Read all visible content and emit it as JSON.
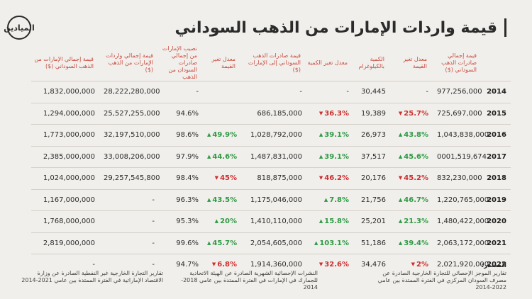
{
  "logo_text": "الميادين",
  "title": "قيمة واردات الإمارات من الذهب السوداني",
  "headers": {
    "uae_total_imports": "قيمة إجمالي الإمارات من الذهب السوداني ($)",
    "uae_total_gold_imports": "قيمة إجمالي واردات الإمارات من الذهب ($)",
    "sudan_share": "نصيب الإمارات من إجمالي صادرات السودان من الذهب",
    "value_change_uae": "معدل تغير القيمة",
    "uae_gold_exports_value": "قيمة صادرات الذهب السوداني إلى الإمارات ($)",
    "qty_change": "معدل تغير الكمية",
    "quantity": "الكمية بالكيلوغرام",
    "value_change": "معدل تغير القيمة",
    "sudan_total_exports": "قيمة إجمالي صادرات الذهب السوداني ($)"
  },
  "rows": [
    {
      "year": "2014",
      "a": "1,832,000,000",
      "b": "28,222,280,000",
      "c": "-",
      "d": "",
      "d_dir": "",
      "e": "-",
      "f": "-",
      "f_dir": "",
      "g": "30,445",
      "h": "-",
      "h_dir": "",
      "i": "977,256,000"
    },
    {
      "year": "2015",
      "a": "1,294,000,000",
      "b": "25,527,255,000",
      "c": "94.6%",
      "d": "",
      "d_dir": "",
      "e": "686,185,000",
      "f": "36.3%",
      "f_dir": "down",
      "g": "19,389",
      "h": "25.7%",
      "h_dir": "down",
      "i": "725,697,000"
    },
    {
      "year": "2016",
      "a": "1,773,000,000",
      "b": "32,197,510,000",
      "c": "98.6%",
      "d": "49.9%",
      "d_dir": "up",
      "e": "1,028,792,000",
      "f": "39.1%",
      "f_dir": "up",
      "g": "26,973",
      "h": "43.8%",
      "h_dir": "up",
      "i": "1,043,838,000"
    },
    {
      "year": "2017",
      "a": "2,385,000,000",
      "b": "33,008,206,000",
      "c": "97.9%",
      "d": "44.6%",
      "d_dir": "up",
      "e": "1,487,831,000",
      "f": "39.1%",
      "f_dir": "up",
      "g": "37,517",
      "h": "45.6%",
      "h_dir": "up",
      "i": "0001,519,674"
    },
    {
      "year": "2018",
      "a": "1,024,000,000",
      "b": "29,257,545,800",
      "c": "98.4%",
      "d": "45%",
      "d_dir": "down",
      "e": "818,875,000",
      "f": "46.2%",
      "f_dir": "down",
      "g": "20,176",
      "h": "45.2%",
      "h_dir": "down",
      "i": "832,230,000"
    },
    {
      "year": "2019",
      "a": "1,167,000,000",
      "b": "-",
      "c": "96.3%",
      "d": "43.5%",
      "d_dir": "up",
      "e": "1,175,046,000",
      "f": "7.8%",
      "f_dir": "up",
      "g": "21,756",
      "h": "46.7%",
      "h_dir": "up",
      "i": "1,220,765,000"
    },
    {
      "year": "2020",
      "a": "1,768,000,000",
      "b": "-",
      "c": "95.3%",
      "d": "20%",
      "d_dir": "up",
      "e": "1,410,110,000",
      "f": "15.8%",
      "f_dir": "up",
      "g": "25,201",
      "h": "21.3%",
      "h_dir": "up",
      "i": "1,480,422,000"
    },
    {
      "year": "2021",
      "a": "2,819,000,000",
      "b": "-",
      "c": "99.6%",
      "d": "45.7%",
      "d_dir": "up",
      "e": "2,054,605,000",
      "f": "103.1%",
      "f_dir": "up",
      "g": "51,186",
      "h": "39.4%",
      "h_dir": "up",
      "i": "2,063,172,000"
    },
    {
      "year": "2022",
      "a": "-",
      "b": "-",
      "c": "94.7%",
      "d": "6.8%",
      "d_dir": "down",
      "e": "1,914,360,000",
      "f": "32.6%",
      "f_dir": "down",
      "g": "34,476",
      "h": "2%",
      "h_dir": "down",
      "i": "2,021,920,000"
    }
  ],
  "source_label": "المصدر:",
  "sources": [
    "تقارير الموجز الإحصائي للتجارة الخارجية الصادرة عن مصرف السودان المركزي في الفترة الممتدة بين عامي 2022-2014",
    "النشرات الإحصائية الشهرية الصادرة عن الهيئة الاتحادية للجمارك في الإمارات في الفترة الممتدة بين عامي 2018-2014",
    "تقارير التجارة الخارجية غير النفطية الصادرة عن وزارة الاقتصاد الإماراتية في الفترة الممتدة بين عامي 2021-2014"
  ],
  "colors": {
    "background": "#f1efeb",
    "header": "#c94a3e",
    "up": "#2e9a45",
    "down": "#cc2f2f"
  }
}
